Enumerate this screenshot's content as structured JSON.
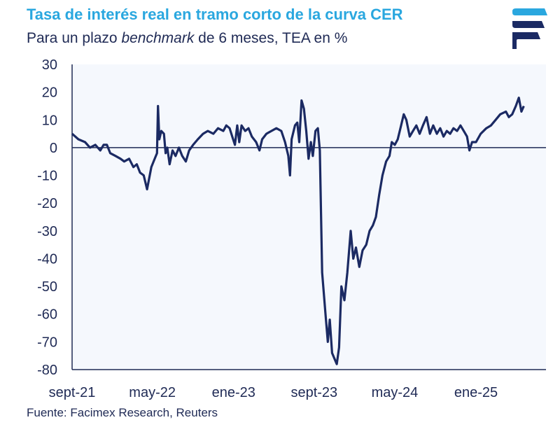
{
  "header": {
    "title": "Tasa de interés real en tramo corto de la curva CER",
    "subtitle_pre": "Para un plazo ",
    "subtitle_em": "benchmark",
    "subtitle_post": " de 6 meses, TEA en %"
  },
  "footer": {
    "source": "Fuente: Facimex Research, Reuters"
  },
  "colors": {
    "title": "#2aa7df",
    "text": "#1f2a55",
    "line": "#1b2a63",
    "plot_bg": "#f5f8fd"
  },
  "logo": {
    "icon": "facimex-logo-icon"
  },
  "chart_data": {
    "type": "line",
    "title": "Tasa de interés real en tramo corto de la curva CER",
    "ylim": [
      -80,
      30
    ],
    "yticks": [
      30,
      20,
      10,
      0,
      -10,
      -20,
      -30,
      -40,
      -50,
      -60,
      -70,
      -80
    ],
    "xtick_labels": [
      {
        "date": "2021-09-01",
        "label": "sept-21"
      },
      {
        "date": "2022-05-01",
        "label": "may-22"
      },
      {
        "date": "2023-01-01",
        "label": "ene-23"
      },
      {
        "date": "2023-09-01",
        "label": "sept-23"
      },
      {
        "date": "2024-05-01",
        "label": "may-24"
      },
      {
        "date": "2025-01-01",
        "label": "ene-25"
      }
    ],
    "xlim": [
      "2021-09-01",
      "2025-07-31"
    ],
    "grid": false,
    "series": [
      {
        "points": [
          [
            "2021-09-01",
            5
          ],
          [
            "2021-09-20",
            3
          ],
          [
            "2021-10-10",
            2
          ],
          [
            "2021-10-25",
            0
          ],
          [
            "2021-11-10",
            1
          ],
          [
            "2021-11-25",
            -1
          ],
          [
            "2021-12-05",
            1
          ],
          [
            "2021-12-15",
            1
          ],
          [
            "2021-12-25",
            -2
          ],
          [
            "2022-01-10",
            -3
          ],
          [
            "2022-01-25",
            -4
          ],
          [
            "2022-02-05",
            -5
          ],
          [
            "2022-02-20",
            -4
          ],
          [
            "2022-03-05",
            -7
          ],
          [
            "2022-03-15",
            -6
          ],
          [
            "2022-03-25",
            -9
          ],
          [
            "2022-04-05",
            -10
          ],
          [
            "2022-04-15",
            -15
          ],
          [
            "2022-04-20",
            -12
          ],
          [
            "2022-04-28",
            -7
          ],
          [
            "2022-05-08",
            -4
          ],
          [
            "2022-05-15",
            -2
          ],
          [
            "2022-05-18",
            15
          ],
          [
            "2022-05-22",
            3
          ],
          [
            "2022-05-28",
            6
          ],
          [
            "2022-06-05",
            5
          ],
          [
            "2022-06-10",
            -2
          ],
          [
            "2022-06-15",
            0
          ],
          [
            "2022-06-22",
            -6
          ],
          [
            "2022-07-01",
            -1
          ],
          [
            "2022-07-10",
            -3
          ],
          [
            "2022-07-20",
            0
          ],
          [
            "2022-07-30",
            -3
          ],
          [
            "2022-08-10",
            -5
          ],
          [
            "2022-08-20",
            -1
          ],
          [
            "2022-09-01",
            1
          ],
          [
            "2022-09-15",
            3
          ],
          [
            "2022-10-01",
            5
          ],
          [
            "2022-10-15",
            6
          ],
          [
            "2022-11-01",
            5
          ],
          [
            "2022-11-15",
            7
          ],
          [
            "2022-12-01",
            6
          ],
          [
            "2022-12-10",
            8
          ],
          [
            "2022-12-20",
            7
          ],
          [
            "2022-12-28",
            4
          ],
          [
            "2023-01-05",
            1
          ],
          [
            "2023-01-12",
            8
          ],
          [
            "2023-01-18",
            2
          ],
          [
            "2023-01-25",
            8
          ],
          [
            "2023-02-05",
            6
          ],
          [
            "2023-02-15",
            7
          ],
          [
            "2023-02-25",
            4
          ],
          [
            "2023-03-10",
            2
          ],
          [
            "2023-03-20",
            -1
          ],
          [
            "2023-03-28",
            3
          ],
          [
            "2023-04-10",
            5
          ],
          [
            "2023-04-25",
            6
          ],
          [
            "2023-05-10",
            7
          ],
          [
            "2023-05-25",
            6
          ],
          [
            "2023-06-05",
            2
          ],
          [
            "2023-06-15",
            -3
          ],
          [
            "2023-06-20",
            -10
          ],
          [
            "2023-06-25",
            3
          ],
          [
            "2023-07-05",
            8
          ],
          [
            "2023-07-12",
            9
          ],
          [
            "2023-07-18",
            2
          ],
          [
            "2023-07-25",
            17
          ],
          [
            "2023-08-01",
            14
          ],
          [
            "2023-08-08",
            6
          ],
          [
            "2023-08-15",
            -4
          ],
          [
            "2023-08-22",
            2
          ],
          [
            "2023-08-28",
            -3
          ],
          [
            "2023-09-05",
            6
          ],
          [
            "2023-09-12",
            7
          ],
          [
            "2023-09-18",
            -1
          ],
          [
            "2023-09-25",
            -45
          ],
          [
            "2023-10-05",
            -60
          ],
          [
            "2023-10-12",
            -70
          ],
          [
            "2023-10-18",
            -62
          ],
          [
            "2023-10-25",
            -74
          ],
          [
            "2023-11-01",
            -76
          ],
          [
            "2023-11-08",
            -78
          ],
          [
            "2023-11-15",
            -72
          ],
          [
            "2023-11-22",
            -50
          ],
          [
            "2023-12-01",
            -55
          ],
          [
            "2023-12-10",
            -45
          ],
          [
            "2023-12-20",
            -30
          ],
          [
            "2023-12-28",
            -40
          ],
          [
            "2024-01-05",
            -36
          ],
          [
            "2024-01-15",
            -43
          ],
          [
            "2024-01-25",
            -37
          ],
          [
            "2024-02-05",
            -35
          ],
          [
            "2024-02-15",
            -30
          ],
          [
            "2024-02-25",
            -28
          ],
          [
            "2024-03-05",
            -25
          ],
          [
            "2024-03-15",
            -17
          ],
          [
            "2024-03-25",
            -10
          ],
          [
            "2024-04-05",
            -5
          ],
          [
            "2024-04-15",
            -3
          ],
          [
            "2024-04-22",
            2
          ],
          [
            "2024-05-01",
            1
          ],
          [
            "2024-05-10",
            3
          ],
          [
            "2024-05-20",
            8
          ],
          [
            "2024-05-28",
            12
          ],
          [
            "2024-06-05",
            10
          ],
          [
            "2024-06-15",
            4
          ],
          [
            "2024-06-25",
            6
          ],
          [
            "2024-07-05",
            8
          ],
          [
            "2024-07-15",
            5
          ],
          [
            "2024-07-25",
            8
          ],
          [
            "2024-08-05",
            11
          ],
          [
            "2024-08-15",
            5
          ],
          [
            "2024-08-25",
            8
          ],
          [
            "2024-09-05",
            5
          ],
          [
            "2024-09-15",
            7
          ],
          [
            "2024-09-25",
            4
          ],
          [
            "2024-10-05",
            6
          ],
          [
            "2024-10-15",
            5
          ],
          [
            "2024-10-25",
            7
          ],
          [
            "2024-11-05",
            6
          ],
          [
            "2024-11-15",
            8
          ],
          [
            "2024-11-25",
            6
          ],
          [
            "2024-12-05",
            4
          ],
          [
            "2024-12-12",
            -1
          ],
          [
            "2024-12-20",
            2
          ],
          [
            "2025-01-01",
            2
          ],
          [
            "2025-01-15",
            5
          ],
          [
            "2025-02-01",
            7
          ],
          [
            "2025-02-15",
            8
          ],
          [
            "2025-03-01",
            10
          ],
          [
            "2025-03-15",
            12
          ],
          [
            "2025-04-01",
            13
          ],
          [
            "2025-04-10",
            11
          ],
          [
            "2025-04-20",
            12
          ],
          [
            "2025-05-01",
            15
          ],
          [
            "2025-05-10",
            18
          ],
          [
            "2025-05-18",
            13
          ],
          [
            "2025-05-25",
            15
          ]
        ]
      }
    ]
  }
}
